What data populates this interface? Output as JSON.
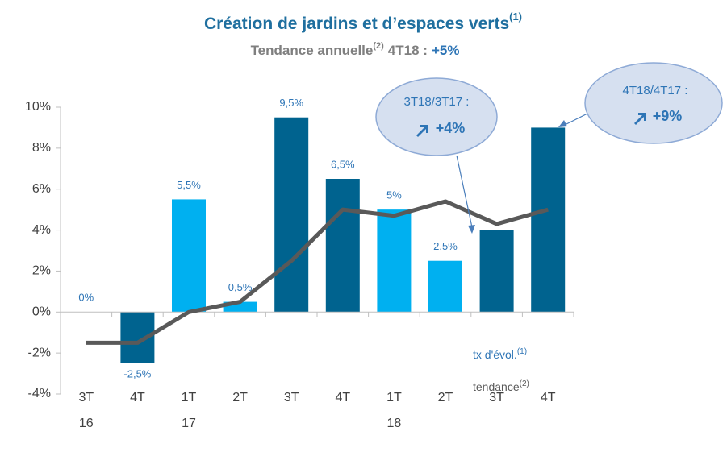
{
  "chart_data": {
    "type": "bar",
    "title": "Création de jardins et d’espaces verts",
    "title_note": "(1)",
    "subtitle": {
      "text": "Tendance annuelle",
      "note": "(2)",
      "period": "4T18 :",
      "value": "+5%"
    },
    "categories": [
      [
        "3T",
        "16"
      ],
      [
        "4T"
      ],
      [
        "1T",
        "17"
      ],
      [
        "2T"
      ],
      [
        "3T"
      ],
      [
        "4T"
      ],
      [
        "1T",
        "18"
      ],
      [
        "2T"
      ],
      [
        "3T"
      ],
      [
        "4T"
      ]
    ],
    "series": [
      {
        "name": "tx d'évol.",
        "note": "(1)",
        "type": "bar",
        "colors": [
          "#00638f",
          "#00638f",
          "#00b0f0",
          "#00b0f0",
          "#00638f",
          "#00638f",
          "#00b0f0",
          "#00b0f0",
          "#00638f",
          "#00638f"
        ],
        "values": [
          0,
          -2.5,
          5.5,
          0.5,
          9.5,
          6.5,
          5,
          2.5,
          4,
          9
        ],
        "value_labels": [
          "0%",
          "-2,5%",
          "5,5%",
          "0,5%",
          "9,5%",
          "6,5%",
          "5%",
          "2,5%",
          null,
          null
        ]
      },
      {
        "name": "tendance",
        "note": "(2)",
        "type": "line",
        "color": "#595959",
        "values": [
          -1.5,
          -1.5,
          0,
          0.5,
          2.5,
          5,
          4.7,
          5.4,
          4.3,
          5
        ]
      }
    ],
    "ylim": [
      -4,
      10
    ],
    "yticks": [
      {
        "value": -4,
        "label": "-4%"
      },
      {
        "value": -2,
        "label": "-2%"
      },
      {
        "value": 0,
        "label": "0%"
      },
      {
        "value": 2,
        "label": "2%"
      },
      {
        "value": 4,
        "label": "4%"
      },
      {
        "value": 6,
        "label": "6%"
      },
      {
        "value": 8,
        "label": "8%"
      },
      {
        "value": 10,
        "label": "10%"
      }
    ],
    "annotations": [
      {
        "label": "3T18/3T17 :",
        "value": "+4%",
        "category_index": 8
      },
      {
        "label": "4T18/4T17 :",
        "value": "+9%",
        "category_index": 9
      }
    ]
  }
}
